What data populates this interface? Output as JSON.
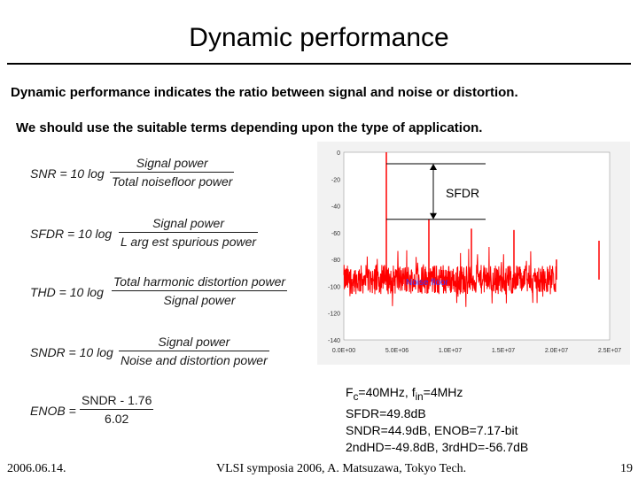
{
  "slide": {
    "title": "Dynamic performance",
    "intro_line_1": "Dynamic performance indicates the ratio between signal and noise or distortion.",
    "intro_line_2": "We should use the suitable terms depending upon the type of application."
  },
  "formulas": {
    "snr": {
      "lhs": "SNR = 10 log",
      "numerator": "Signal  power",
      "denominator": "Total noisefloor  power"
    },
    "sfdr": {
      "lhs": "SFDR = 10 log",
      "numerator": "Signal  power",
      "denominator": "L arg est spurious  power"
    },
    "thd": {
      "lhs": "THD = 10 log",
      "numerator": "Total harmonic  distortion   power",
      "denominator": "Signal  power"
    },
    "sndr": {
      "lhs": "SNDR = 10 log",
      "numerator": "Signal  power",
      "denominator": "Noise and distortion   power"
    },
    "enob": {
      "lhs": "ENOB =",
      "numerator": "SNDR - 1.76",
      "denominator": "6.02"
    }
  },
  "chart_data": {
    "type": "line",
    "x_ticks": [
      "0.0E+00",
      "5.0E+06",
      "1.0E+07",
      "1.5E+07",
      "2.0E+07",
      "2.5E+07"
    ],
    "y_ticks": [
      "0",
      "-20",
      "-40",
      "-60",
      "-80",
      "-100",
      "-120",
      "-140"
    ],
    "xlim": [
      0,
      25000000
    ],
    "ylim": [
      -140,
      0
    ],
    "annotations": {
      "sfdr_label": "SFDR",
      "noise_floor_label": "Noise floor"
    },
    "noise_floor_db": -95,
    "spurs": [
      {
        "x": 4000000,
        "y": 0
      },
      {
        "x": 8000000,
        "y": -50
      },
      {
        "x": 12000000,
        "y": -57
      },
      {
        "x": 16000000,
        "y": -58
      },
      {
        "x": 20000000,
        "y": -80
      },
      {
        "x": 24000000,
        "y": -66
      }
    ],
    "colors": {
      "signal": "#ff0000",
      "annotation": "#000000",
      "noise_label": "#3333ff",
      "background": "#f2f2f2"
    }
  },
  "results": {
    "line1": "Fc=40MHz, fin=4MHz",
    "line2": "SFDR=49.8dB",
    "line3": "SNDR=44.9dB, ENOB=7.17-bit",
    "line4": "2ndHD=-49.8dB, 3rdHD=-56.7dB"
  },
  "footer": {
    "date": "2006.06.14.",
    "center": "VLSI symposia 2006,  A. Matsuzawa, Tokyo Tech.",
    "page": "19"
  }
}
